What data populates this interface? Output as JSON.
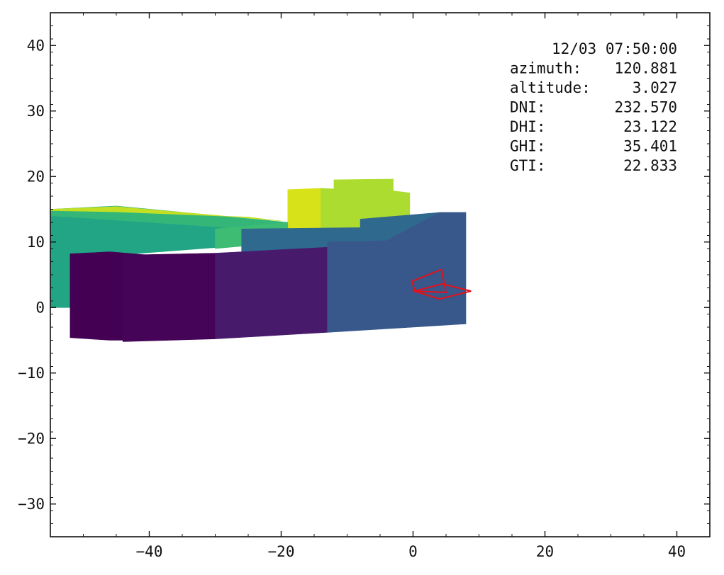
{
  "chart_data": {
    "type": "3d-scene",
    "title": "",
    "xlabel": "",
    "ylabel": "",
    "xlim": [
      -55,
      45
    ],
    "ylim": [
      -35,
      45
    ],
    "x_ticks": [
      -40,
      -20,
      0,
      20,
      40
    ],
    "y_ticks": [
      -30,
      -20,
      -10,
      0,
      10,
      20,
      30,
      40
    ],
    "x_tick_labels": [
      "−40",
      "−20",
      "0",
      "20",
      "40"
    ],
    "y_tick_labels": [
      "−30",
      "−20",
      "−10",
      "0",
      "10",
      "20",
      "30",
      "40"
    ],
    "grid": false,
    "colormap": "viridis",
    "info_box": {
      "timestamp": "12/03 07:50:00",
      "rows": [
        {
          "label": "azimuth:",
          "value": "120.881"
        },
        {
          "label": "altitude:",
          "value": "3.027"
        },
        {
          "label": "DNI:",
          "value": "232.570"
        },
        {
          "label": "DHI:",
          "value": "23.122"
        },
        {
          "label": "GHI:",
          "value": "35.401"
        },
        {
          "label": "GTI:",
          "value": "22.833"
        }
      ]
    },
    "surfaces": [
      {
        "name": "left-block-face",
        "color": "#21a585",
        "points": [
          [
            -55,
            0
          ],
          [
            -55,
            15
          ],
          [
            -19,
            13
          ],
          [
            -19,
            10
          ],
          [
            -45,
            8
          ],
          [
            -52,
            0
          ]
        ]
      },
      {
        "name": "left-block-roof",
        "color": "#34b679",
        "points": [
          [
            -55,
            15
          ],
          [
            -45,
            15.5
          ],
          [
            -19,
            13
          ],
          [
            -25,
            12
          ],
          [
            -55,
            14
          ]
        ]
      },
      {
        "name": "left-block-top-band",
        "color": "#c2df23",
        "points": [
          [
            -55,
            15
          ],
          [
            -45,
            15.4
          ],
          [
            -20,
            13.2
          ],
          [
            -25,
            13.8
          ],
          [
            -45,
            14.6
          ],
          [
            -55,
            14.8
          ]
        ]
      },
      {
        "name": "yellow-box-left",
        "color": "#d8e219",
        "points": [
          [
            -19,
            18
          ],
          [
            -14,
            18.2
          ],
          [
            -14,
            12
          ],
          [
            -19,
            12
          ]
        ]
      },
      {
        "name": "yellow-box-right",
        "color": "#addc30",
        "points": [
          [
            -14,
            18.2
          ],
          [
            -12,
            18.1
          ],
          [
            -12,
            19.5
          ],
          [
            -3,
            19.6
          ],
          [
            -3,
            17.8
          ],
          [
            -0.5,
            17.5
          ],
          [
            -0.5,
            12
          ],
          [
            -14,
            12
          ]
        ]
      },
      {
        "name": "teal-band",
        "color": "#3fbc73",
        "points": [
          [
            -30,
            12
          ],
          [
            -19,
            13
          ],
          [
            -19,
            10
          ],
          [
            -30,
            9
          ]
        ]
      },
      {
        "name": "mid-blue-wall",
        "color": "#30698e",
        "points": [
          [
            -26,
            12
          ],
          [
            -8,
            12.2
          ],
          [
            -8,
            13.5
          ],
          [
            4,
            14.5
          ],
          [
            8,
            14.5
          ],
          [
            8,
            -2.5
          ],
          [
            -26,
            -4
          ]
        ]
      },
      {
        "name": "front-wall-left",
        "color": "#440154",
        "points": [
          [
            -52,
            8.2
          ],
          [
            -46,
            8.5
          ],
          [
            -40,
            8
          ],
          [
            -40,
            -5
          ],
          [
            -46,
            -5
          ],
          [
            -52,
            -4.6
          ]
        ]
      },
      {
        "name": "front-wall-dark",
        "color": "#450457",
        "points": [
          [
            -44,
            8
          ],
          [
            -30,
            8.3
          ],
          [
            -30,
            -4.8
          ],
          [
            -44,
            -5.2
          ]
        ]
      },
      {
        "name": "front-wall-mid",
        "color": "#481a6c",
        "points": [
          [
            -30,
            8.3
          ],
          [
            -13,
            9.2
          ],
          [
            -13,
            -3.8
          ],
          [
            -30,
            -4.8
          ]
        ]
      },
      {
        "name": "front-wall-right",
        "color": "#38588c",
        "points": [
          [
            -13,
            10
          ],
          [
            -4,
            10.2
          ],
          [
            4,
            14.5
          ],
          [
            8,
            14.5
          ],
          [
            8,
            -2.5
          ],
          [
            -13,
            -3.8
          ]
        ]
      }
    ],
    "red_outline": [
      {
        "name": "panel-upright",
        "points": [
          [
            -0.2,
            4
          ],
          [
            4.3,
            5.8
          ],
          [
            5,
            2.3
          ],
          [
            0.3,
            2.5
          ]
        ]
      },
      {
        "name": "panel-flat",
        "points": [
          [
            0.2,
            2.5
          ],
          [
            4.4,
            3.6
          ],
          [
            8.8,
            2.5
          ],
          [
            4,
            1.3
          ]
        ]
      }
    ]
  }
}
